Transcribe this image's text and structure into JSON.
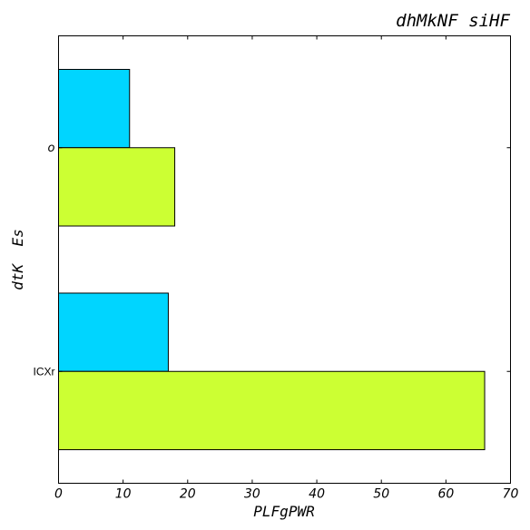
{
  "chart_data": {
    "type": "bar",
    "orientation": "horizontal",
    "title": "dhMkNF siHF",
    "xlabel": "PLFgPWR",
    "ylabel": "dtK  Es",
    "categories": [
      "o",
      "ICXr"
    ],
    "xlim": [
      0,
      70
    ],
    "xticks": [
      "0",
      "10",
      "20",
      "30",
      "40",
      "50",
      "60",
      "70"
    ],
    "grid": false,
    "legend": "none",
    "series": [
      {
        "color": "#00d5ff",
        "values": [
          11,
          17
        ]
      },
      {
        "color": "#ccff33",
        "values": [
          18,
          66
        ]
      }
    ]
  }
}
